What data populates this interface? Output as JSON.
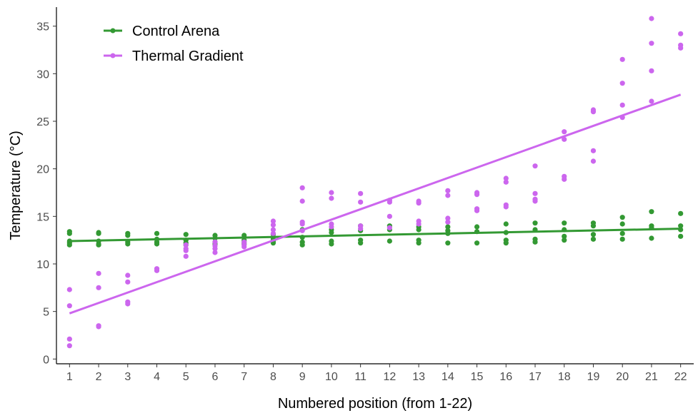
{
  "chart_data": {
    "type": "scatter",
    "title": "",
    "xlabel": "Numbered position (from 1-22)",
    "ylabel": "Temperature (°C)",
    "xlim": [
      0.55,
      22.45
    ],
    "ylim": [
      -0.5,
      37
    ],
    "x_ticks": [
      1,
      2,
      3,
      4,
      5,
      6,
      7,
      8,
      9,
      10,
      11,
      12,
      13,
      14,
      15,
      16,
      17,
      18,
      19,
      20,
      21,
      22
    ],
    "y_ticks": [
      0,
      5,
      10,
      15,
      20,
      25,
      30,
      35
    ],
    "grid": false,
    "legend_position": "top-left",
    "series": [
      {
        "name": "Control Arena",
        "color": "#339933",
        "trend_line": {
          "x": [
            1,
            22
          ],
          "y": [
            12.4,
            13.7
          ]
        },
        "points": [
          [
            1,
            13.4
          ],
          [
            1,
            13.2
          ],
          [
            1,
            12.4
          ],
          [
            1,
            12.2
          ],
          [
            1,
            12.0
          ],
          [
            2,
            13.3
          ],
          [
            2,
            13.2
          ],
          [
            2,
            12.4
          ],
          [
            2,
            12.1
          ],
          [
            2,
            12.0
          ],
          [
            3,
            13.2
          ],
          [
            3,
            13.0
          ],
          [
            3,
            12.3
          ],
          [
            3,
            12.1
          ],
          [
            4,
            13.2
          ],
          [
            4,
            12.6
          ],
          [
            4,
            12.3
          ],
          [
            4,
            12.1
          ],
          [
            5,
            13.1
          ],
          [
            5,
            12.5
          ],
          [
            5,
            12.2
          ],
          [
            5,
            12.0
          ],
          [
            6,
            13.0
          ],
          [
            6,
            12.7
          ],
          [
            6,
            12.3
          ],
          [
            6,
            12.1
          ],
          [
            7,
            13.0
          ],
          [
            7,
            12.5
          ],
          [
            7,
            12.3
          ],
          [
            7,
            12.1
          ],
          [
            8,
            13.1
          ],
          [
            8,
            12.6
          ],
          [
            8,
            12.4
          ],
          [
            8,
            12.2
          ],
          [
            9,
            13.6
          ],
          [
            9,
            12.8
          ],
          [
            9,
            12.3
          ],
          [
            9,
            12.0
          ],
          [
            10,
            13.6
          ],
          [
            10,
            13.3
          ],
          [
            10,
            12.4
          ],
          [
            10,
            12.1
          ],
          [
            11,
            14.0
          ],
          [
            11,
            13.5
          ],
          [
            11,
            12.5
          ],
          [
            11,
            12.2
          ],
          [
            12,
            14.0
          ],
          [
            12,
            13.6
          ],
          [
            12,
            12.4
          ],
          [
            13,
            13.9
          ],
          [
            13,
            13.6
          ],
          [
            13,
            12.5
          ],
          [
            13,
            12.2
          ],
          [
            14,
            13.9
          ],
          [
            14,
            13.5
          ],
          [
            14,
            13.2
          ],
          [
            14,
            12.2
          ],
          [
            15,
            13.9
          ],
          [
            15,
            13.4
          ],
          [
            15,
            12.2
          ],
          [
            16,
            14.2
          ],
          [
            16,
            13.3
          ],
          [
            16,
            12.5
          ],
          [
            16,
            12.2
          ],
          [
            17,
            14.3
          ],
          [
            17,
            13.6
          ],
          [
            17,
            12.6
          ],
          [
            17,
            12.3
          ],
          [
            18,
            14.3
          ],
          [
            18,
            13.6
          ],
          [
            18,
            12.9
          ],
          [
            18,
            12.5
          ],
          [
            19,
            14.3
          ],
          [
            19,
            14.0
          ],
          [
            19,
            13.1
          ],
          [
            19,
            12.6
          ],
          [
            20,
            14.9
          ],
          [
            20,
            14.2
          ],
          [
            20,
            13.2
          ],
          [
            20,
            12.6
          ],
          [
            21,
            15.5
          ],
          [
            21,
            14.0
          ],
          [
            21,
            13.8
          ],
          [
            21,
            12.7
          ],
          [
            22,
            15.3
          ],
          [
            22,
            14.0
          ],
          [
            22,
            13.6
          ],
          [
            22,
            12.9
          ]
        ]
      },
      {
        "name": "Thermal Gradient",
        "color": "#cc66ee",
        "trend_line": {
          "x": [
            1,
            22
          ],
          "y": [
            4.8,
            27.8
          ]
        },
        "points": [
          [
            1,
            7.3
          ],
          [
            1,
            5.6
          ],
          [
            1,
            2.1
          ],
          [
            1,
            1.4
          ],
          [
            2,
            9.0
          ],
          [
            2,
            7.5
          ],
          [
            2,
            3.5
          ],
          [
            2,
            3.4
          ],
          [
            3,
            8.8
          ],
          [
            3,
            8.1
          ],
          [
            3,
            6.0
          ],
          [
            3,
            5.8
          ],
          [
            4,
            9.5
          ],
          [
            4,
            9.3
          ],
          [
            5,
            12.0
          ],
          [
            5,
            11.6
          ],
          [
            5,
            11.4
          ],
          [
            5,
            10.8
          ],
          [
            6,
            12.3
          ],
          [
            6,
            11.9
          ],
          [
            6,
            11.6
          ],
          [
            6,
            11.2
          ],
          [
            7,
            12.3
          ],
          [
            7,
            12.0
          ],
          [
            7,
            11.8
          ],
          [
            8,
            14.5
          ],
          [
            8,
            14.1
          ],
          [
            8,
            13.6
          ],
          [
            8,
            13.2
          ],
          [
            9,
            18.0
          ],
          [
            9,
            16.6
          ],
          [
            9,
            14.4
          ],
          [
            9,
            14.2
          ],
          [
            9,
            13.5
          ],
          [
            10,
            17.5
          ],
          [
            10,
            16.9
          ],
          [
            10,
            14.2
          ],
          [
            10,
            13.9
          ],
          [
            11,
            17.4
          ],
          [
            11,
            16.5
          ],
          [
            11,
            14.0
          ],
          [
            11,
            13.7
          ],
          [
            12,
            16.7
          ],
          [
            12,
            16.5
          ],
          [
            12,
            15.0
          ],
          [
            12,
            13.8
          ],
          [
            13,
            16.6
          ],
          [
            13,
            16.4
          ],
          [
            13,
            14.5
          ],
          [
            13,
            14.2
          ],
          [
            14,
            17.7
          ],
          [
            14,
            17.2
          ],
          [
            14,
            14.8
          ],
          [
            14,
            14.4
          ],
          [
            15,
            17.5
          ],
          [
            15,
            17.3
          ],
          [
            15,
            15.8
          ],
          [
            15,
            15.6
          ],
          [
            16,
            19.0
          ],
          [
            16,
            18.6
          ],
          [
            16,
            16.2
          ],
          [
            16,
            16.0
          ],
          [
            17,
            20.3
          ],
          [
            17,
            17.4
          ],
          [
            17,
            16.8
          ],
          [
            17,
            16.6
          ],
          [
            18,
            23.9
          ],
          [
            18,
            23.1
          ],
          [
            18,
            19.2
          ],
          [
            18,
            18.9
          ],
          [
            19,
            26.2
          ],
          [
            19,
            26.0
          ],
          [
            19,
            21.9
          ],
          [
            19,
            20.8
          ],
          [
            20,
            31.5
          ],
          [
            20,
            29.0
          ],
          [
            20,
            26.7
          ],
          [
            20,
            25.4
          ],
          [
            21,
            35.8
          ],
          [
            21,
            33.2
          ],
          [
            21,
            30.3
          ],
          [
            21,
            27.1
          ],
          [
            22,
            34.2
          ],
          [
            22,
            33.0
          ],
          [
            22,
            32.7
          ]
        ]
      }
    ]
  }
}
